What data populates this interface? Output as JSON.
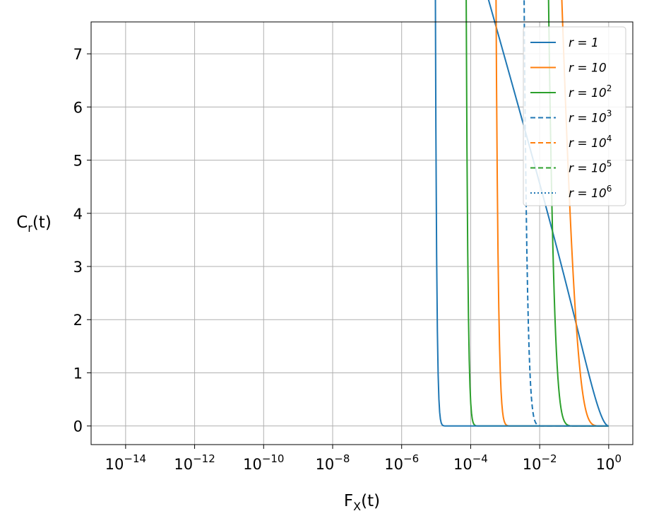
{
  "chart_data": {
    "type": "line",
    "title": "",
    "xlabel": "F_X(t)",
    "ylabel": "C_r(t)",
    "xscale": "log",
    "xlim": [
      1e-15,
      5
    ],
    "ylim": [
      -0.35,
      7.6
    ],
    "grid": true,
    "legend_position": "top-right",
    "x_ticks": [
      {
        "value": 1e-14,
        "base": "10",
        "exp": "−14"
      },
      {
        "value": 1e-12,
        "base": "10",
        "exp": "−12"
      },
      {
        "value": 1e-10,
        "base": "10",
        "exp": "−10"
      },
      {
        "value": 1e-08,
        "base": "10",
        "exp": "−8"
      },
      {
        "value": 1e-06,
        "base": "10",
        "exp": "−6"
      },
      {
        "value": 0.0001,
        "base": "10",
        "exp": "−4"
      },
      {
        "value": 0.01,
        "base": "10",
        "exp": "−2"
      },
      {
        "value": 1,
        "base": "10",
        "exp": "0"
      }
    ],
    "y_ticks": [
      {
        "value": 0,
        "label": "0"
      },
      {
        "value": 1,
        "label": "1"
      },
      {
        "value": 2,
        "label": "2"
      },
      {
        "value": 3,
        "label": "3"
      },
      {
        "value": 4,
        "label": "4"
      },
      {
        "value": 5,
        "label": "5"
      },
      {
        "value": 6,
        "label": "6"
      },
      {
        "value": 7,
        "label": "7"
      }
    ],
    "series": [
      {
        "name_base": "r = 1",
        "name_exp": "",
        "r": 1,
        "color": "#1f77b4",
        "style": "solid"
      },
      {
        "name_base": "r = 10",
        "name_exp": "",
        "r": 10,
        "color": "#ff7f0e",
        "style": "solid"
      },
      {
        "name_base": "r = 10",
        "name_exp": "2",
        "r": 100,
        "color": "#2ca02c",
        "style": "solid"
      },
      {
        "name_base": "r = 10",
        "name_exp": "3",
        "r": 1000,
        "color": "#1f77b4",
        "style": "dashed"
      },
      {
        "name_base": "r = 10",
        "name_exp": "4",
        "r": 10000,
        "color": "#ff7f0e",
        "style": "dashed"
      },
      {
        "name_base": "r = 10",
        "name_exp": "5",
        "r": 100000,
        "color": "#2ca02c",
        "style": "dashed"
      },
      {
        "name_base": "r = 10",
        "name_exp": "6",
        "r": 1000000,
        "color": "#1f77b4",
        "style": "dotted"
      }
    ]
  }
}
